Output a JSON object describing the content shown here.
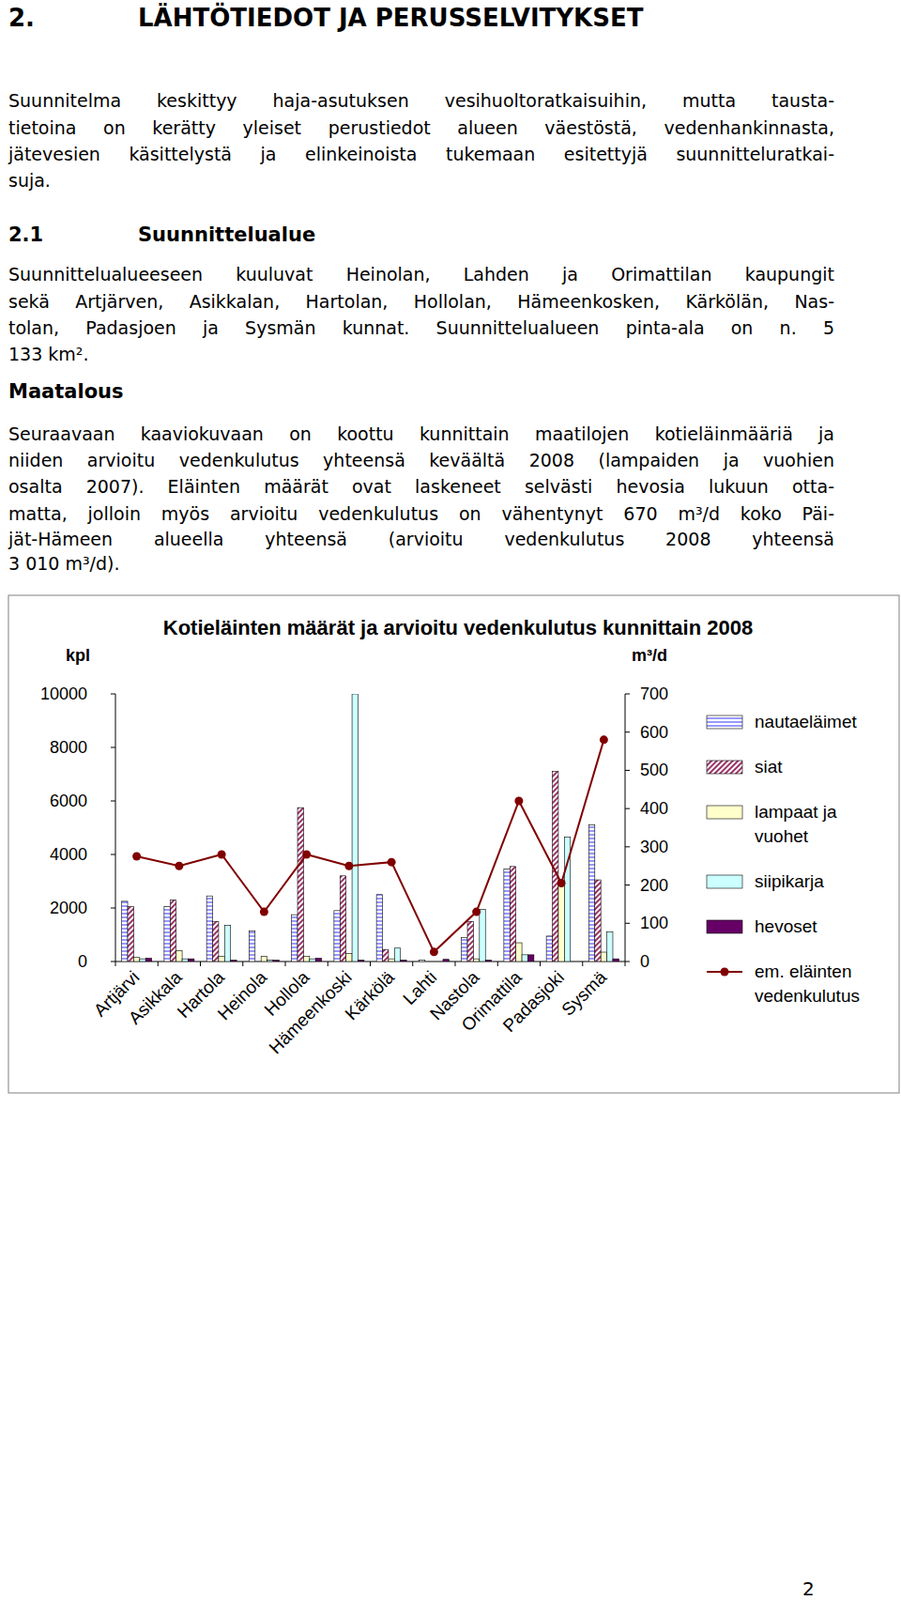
{
  "heading": {
    "number": "2.",
    "title": "LÄHTÖTIEDOT JA PERUSSELVITYKSET"
  },
  "intro": [
    "Suunnitelma keskittyy haja-asutuksen vesihuoltoratkaisuihin, mutta tausta-",
    "tietoina on kerätty yleiset perustiedot alueen väestöstä, vedenhankinnasta,",
    "jätevesien käsittelystä ja elinkeinoista tukemaan esitettyjä suunnitteluratkai-",
    "suja."
  ],
  "section": {
    "number": "2.1",
    "title": "Suunnittelualue"
  },
  "area_text": [
    "Suunnittelualueeseen kuuluvat Heinolan, Lahden ja Orimattilan kaupungit",
    "sekä Artjärven, Asikkalan, Hartolan, Hollolan, Hämeenkosken, Kärkölän, Nas-",
    "tolan, Padasjoen ja Sysmän kunnat. Suunnittelualueen pinta-ala on n. 5",
    "133 km²."
  ],
  "subheading": "Maatalous",
  "agri_text": [
    "Seuraavaan kaaviokuvaan on koottu kunnittain maatilojen kotieläinmääriä ja",
    "niiden arvioitu vedenkulutus yhteensä keväältä 2008 (lampaiden ja vuohien",
    "osalta 2007). Eläinten määrät ovat laskeneet selvästi hevosia lukuun otta-",
    "matta, jolloin myös arvioitu vedenkulutus on vähentynyt 670 m³/d koko Päi-",
    "jät-Hämeen alueella yhteensä (arvioitu vedenkulutus 2008 yhteensä",
    "3 010 m³/d)."
  ],
  "chart_data": {
    "type": "bar",
    "title": "Kotieläinten määrät ja arvioitu vedenkulutus kunnittain 2008",
    "y_label": "kpl",
    "y2_label": "m³/d",
    "categories": [
      "Artjärvi",
      "Asikkala",
      "Hartola",
      "Heinola",
      "Hollola",
      "Hämeenkoski",
      "Kärkölä",
      "Lahti",
      "Nastola",
      "Orimattila",
      "Padasjoki",
      "Sysmä"
    ],
    "series": [
      {
        "name": "nautaeläimet",
        "color": "#9999ff",
        "values": [
          2250,
          2050,
          2450,
          1150,
          1750,
          1900,
          2500,
          50,
          900,
          3450,
          950,
          5100
        ]
      },
      {
        "name": "siat",
        "color": "#993366",
        "values": [
          2050,
          2300,
          1500,
          0,
          5750,
          3200,
          450,
          0,
          1500,
          3550,
          7100,
          3050
        ]
      },
      {
        "name": "lampaat ja vuohet",
        "color": "#ffffcc",
        "values": [
          150,
          400,
          200,
          200,
          200,
          300,
          100,
          0,
          100,
          700,
          3000,
          350
        ]
      },
      {
        "name": "siipikarja",
        "color": "#ccffff",
        "values": [
          100,
          100,
          1350,
          50,
          100,
          10000,
          500,
          0,
          1950,
          250,
          4650,
          1100
        ]
      },
      {
        "name": "hevoset",
        "color": "#660066",
        "values": [
          120,
          100,
          50,
          50,
          120,
          50,
          50,
          80,
          50,
          250,
          0,
          100
        ]
      },
      {
        "name": "em. eläinten vedenkulutus",
        "color": "#800000",
        "type": "line",
        "axis": "y2",
        "marker": "circle",
        "values": [
          275,
          250,
          280,
          130,
          280,
          250,
          260,
          25,
          130,
          420,
          205,
          580
        ]
      }
    ],
    "ylim": [
      0,
      10000
    ],
    "yticks": [
      0,
      2000,
      4000,
      6000,
      8000,
      10000
    ],
    "y2lim": [
      0,
      700
    ],
    "y2ticks": [
      0,
      100,
      200,
      300,
      400,
      500,
      600,
      700
    ],
    "grid": false,
    "legend": "right"
  },
  "page_number": "2"
}
